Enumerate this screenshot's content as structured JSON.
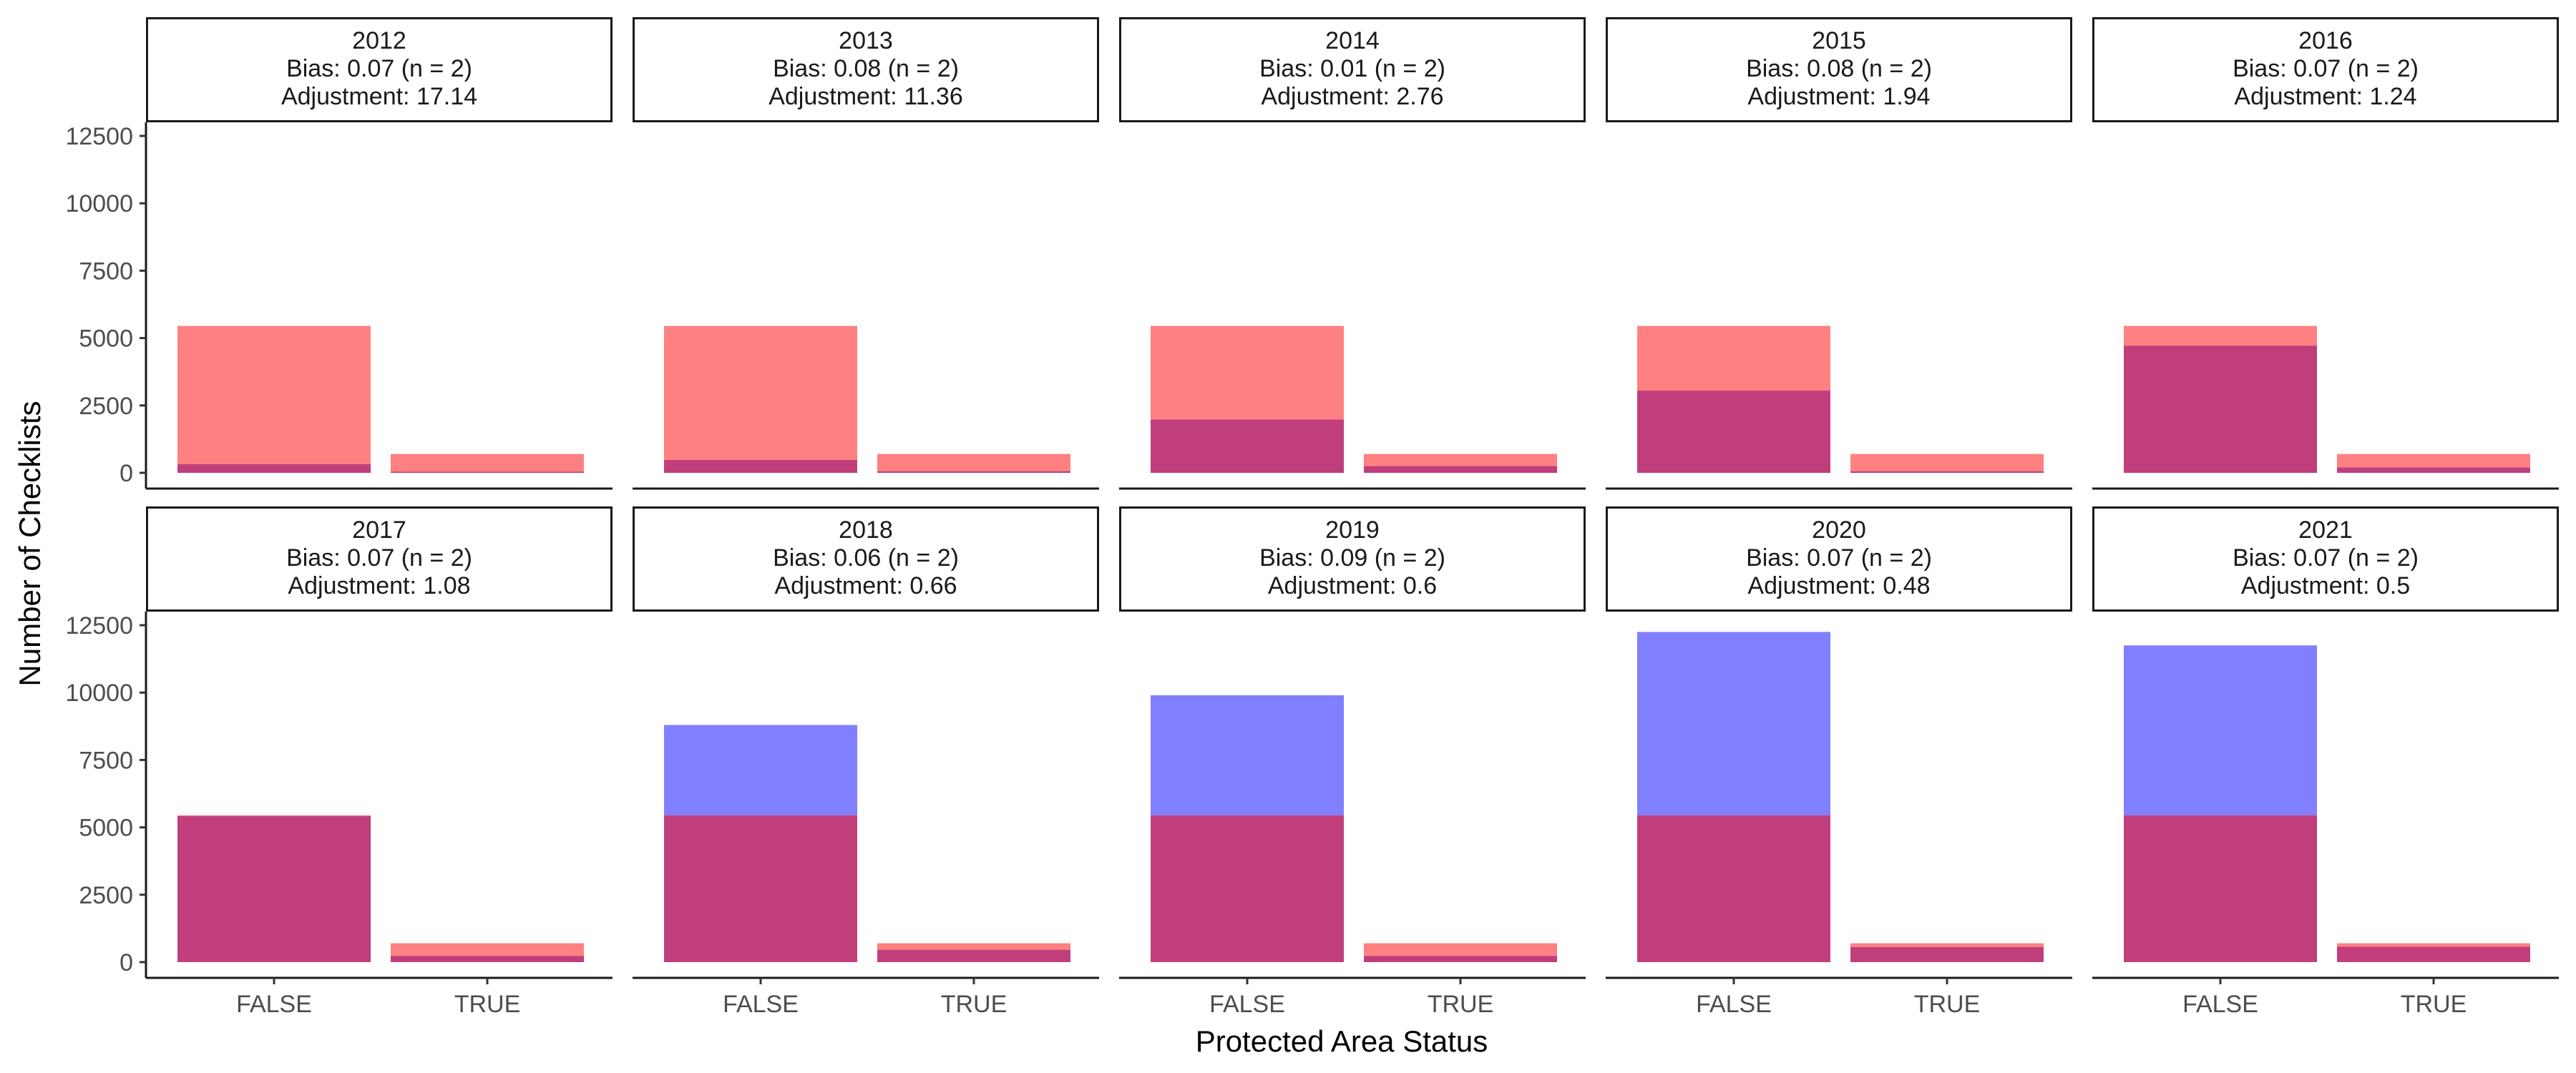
{
  "chart_data": {
    "type": "bar",
    "xlabel": "Protected Area Status",
    "ylabel": "Number of Checklists",
    "categories": [
      "FALSE",
      "TRUE"
    ],
    "ylim": [
      0,
      13000
    ],
    "yticks": [
      0,
      2500,
      5000,
      7500,
      10000,
      12500
    ],
    "layout": "faceted 2 rows x 5 columns",
    "colors": {
      "reference": "#ff8080",
      "observed": "#8080ff",
      "overlap": "#c03e7c"
    },
    "panels": [
      {
        "year": "2012",
        "bias": "Bias: 0.07 (n = 2)",
        "adjustment": "Adjustment: 17.14",
        "reference": [
          5450,
          700
        ],
        "observed": [
          320,
          40
        ]
      },
      {
        "year": "2013",
        "bias": "Bias: 0.08 (n = 2)",
        "adjustment": "Adjustment: 11.36",
        "reference": [
          5450,
          700
        ],
        "observed": [
          480,
          60
        ]
      },
      {
        "year": "2014",
        "bias": "Bias: 0.01 (n = 2)",
        "adjustment": "Adjustment: 2.76",
        "reference": [
          5450,
          700
        ],
        "observed": [
          1980,
          250
        ]
      },
      {
        "year": "2015",
        "bias": "Bias: 0.08 (n = 2)",
        "adjustment": "Adjustment: 1.94",
        "reference": [
          5450,
          700
        ],
        "observed": [
          3050,
          60
        ]
      },
      {
        "year": "2016",
        "bias": "Bias: 0.07 (n = 2)",
        "adjustment": "Adjustment: 1.24",
        "reference": [
          5450,
          700
        ],
        "observed": [
          4720,
          200
        ]
      },
      {
        "year": "2017",
        "bias": "Bias: 0.07 (n = 2)",
        "adjustment": "Adjustment: 1.08",
        "reference": [
          5450,
          700
        ],
        "observed": [
          5420,
          230
        ]
      },
      {
        "year": "2018",
        "bias": "Bias: 0.06 (n = 2)",
        "adjustment": "Adjustment: 0.66",
        "reference": [
          5450,
          700
        ],
        "observed": [
          8800,
          460
        ]
      },
      {
        "year": "2019",
        "bias": "Bias: 0.09 (n = 2)",
        "adjustment": "Adjustment: 0.6",
        "reference": [
          5450,
          700
        ],
        "observed": [
          9900,
          230
        ]
      },
      {
        "year": "2020",
        "bias": "Bias: 0.07 (n = 2)",
        "adjustment": "Adjustment: 0.48",
        "reference": [
          5450,
          700
        ],
        "observed": [
          12250,
          560
        ]
      },
      {
        "year": "2021",
        "bias": "Bias: 0.07 (n = 2)",
        "adjustment": "Adjustment: 0.5",
        "reference": [
          5450,
          700
        ],
        "observed": [
          11750,
          570
        ]
      }
    ]
  }
}
